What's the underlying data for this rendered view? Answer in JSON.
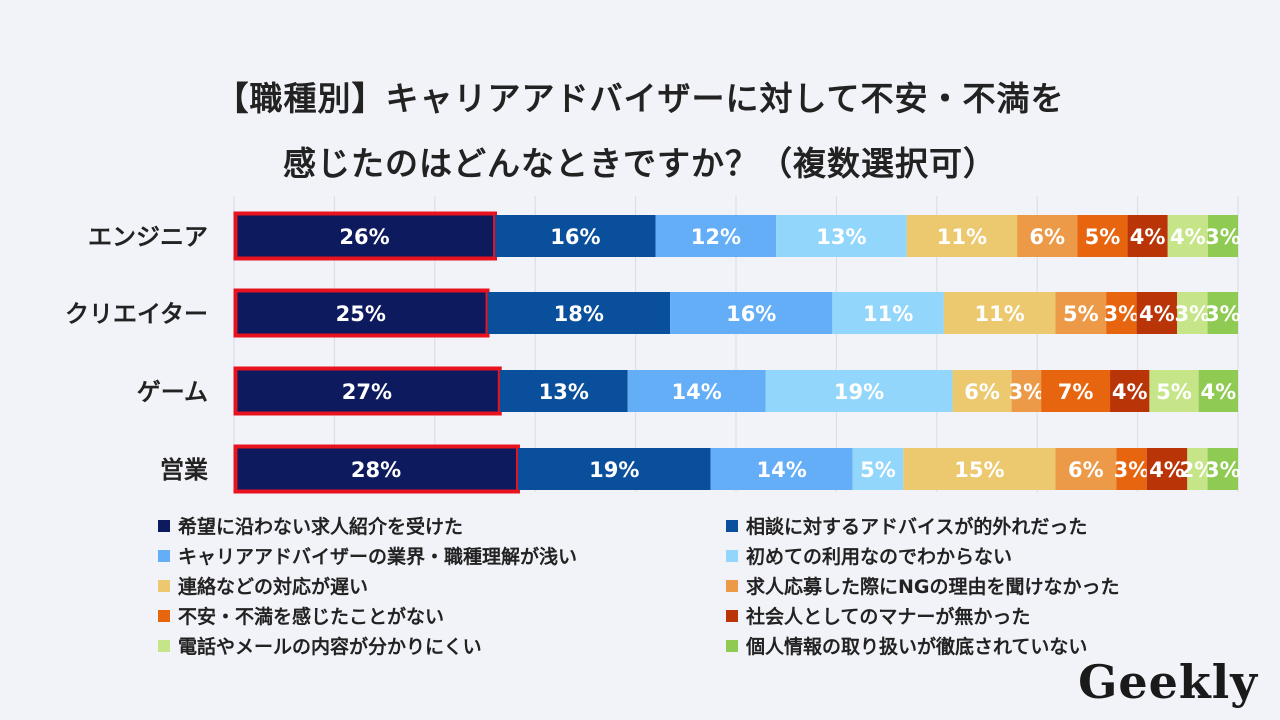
{
  "chart_data": {
    "type": "bar",
    "orientation": "horizontal-stacked",
    "title": "【職種別】キャリアアドバイザーに対して不安・不満を",
    "title_line2": "感じたのはどんなときですか？（複数選択可）",
    "categories": [
      "エンジニア",
      "クリエイター",
      "ゲーム",
      "営業"
    ],
    "series": [
      {
        "name": "希望に沿わない求人紹介を受けた",
        "color": "#0d1a5e",
        "values": [
          26,
          25,
          27,
          28
        ]
      },
      {
        "name": "相談に対するアドバイスが的外れだった",
        "color": "#0a4f9b",
        "values": [
          16,
          18,
          13,
          19
        ]
      },
      {
        "name": "キャリアアドバイザーの業界・職種理解が浅い",
        "color": "#63aef6",
        "values": [
          12,
          16,
          14,
          14
        ]
      },
      {
        "name": "初めての利用なのでわからない",
        "color": "#93d6fb",
        "values": [
          13,
          11,
          19,
          5
        ]
      },
      {
        "name": "連絡などの対応が遅い",
        "color": "#ecc96f",
        "values": [
          11,
          11,
          6,
          15
        ]
      },
      {
        "name": "求人応募した際にNGの理由を聞けなかった",
        "color": "#ec9a48",
        "values": [
          6,
          5,
          3,
          6
        ]
      },
      {
        "name": "不安・不満を感じたことがない",
        "color": "#e8650f",
        "values": [
          5,
          3,
          7,
          3
        ]
      },
      {
        "name": "社会人としてのマナーが無かった",
        "color": "#b93508",
        "values": [
          4,
          4,
          4,
          4
        ]
      },
      {
        "name": "電話やメールの内容が分かりにくい",
        "color": "#c6e589",
        "values": [
          4,
          3,
          5,
          2
        ]
      },
      {
        "name": "個人情報の取り扱いが徹底されていない",
        "color": "#8fcb52",
        "values": [
          3,
          3,
          4,
          3
        ]
      }
    ],
    "value_labels": [
      [
        "26%",
        "16%",
        "12%",
        "13%",
        "11%",
        "6%",
        "5%",
        "4%",
        "4%",
        "3%"
      ],
      [
        "25%",
        "18%",
        "16%",
        "11%",
        "11%",
        "5%",
        "3%",
        "4%",
        "3%",
        "3%"
      ],
      [
        "27%",
        "13%",
        "14%",
        "19%",
        "6%",
        "3%",
        "7%",
        "4%",
        "5%",
        "4%"
      ],
      [
        "28%",
        "19%",
        "14%",
        "5%",
        "15%",
        "6%",
        "3%",
        "4%",
        "2%",
        "3%"
      ]
    ],
    "highlight_series": 0,
    "highlight_color": "#e8131f",
    "legend_position": "bottom",
    "grid": true
  },
  "logo_text": "Geekly"
}
